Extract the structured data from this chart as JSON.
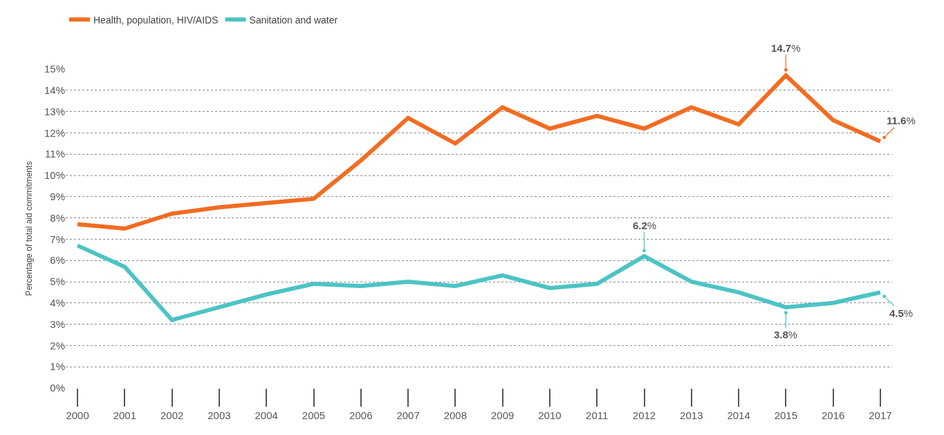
{
  "chart_data": {
    "type": "line",
    "ylabel": "Percentage of total aid commitments",
    "categories": [
      "2000",
      "2001",
      "2002",
      "2003",
      "2004",
      "2005",
      "2006",
      "2007",
      "2008",
      "2009",
      "2010",
      "2011",
      "2012",
      "2013",
      "2014",
      "2015",
      "2016",
      "2017"
    ],
    "series": [
      {
        "name": "Health, population, HIV/AIDS",
        "color": "#f26c22",
        "values": [
          7.7,
          7.5,
          8.2,
          8.5,
          8.7,
          8.9,
          10.7,
          12.7,
          11.5,
          13.2,
          12.2,
          12.8,
          12.2,
          13.2,
          12.4,
          14.7,
          12.6,
          11.6
        ]
      },
      {
        "name": "Sanitation and water",
        "color": "#4dc3c5",
        "values": [
          6.7,
          5.7,
          3.2,
          3.8,
          4.4,
          4.9,
          4.8,
          5.0,
          4.8,
          5.3,
          4.7,
          4.9,
          6.2,
          5.0,
          4.5,
          3.8,
          4.0,
          4.5
        ]
      }
    ],
    "ylim": [
      0,
      15
    ],
    "yticks": [
      {
        "value": 0,
        "label": "0%"
      },
      {
        "value": 1,
        "label": "1%"
      },
      {
        "value": 2,
        "label": "2%"
      },
      {
        "value": 3,
        "label": "3%"
      },
      {
        "value": 4,
        "label": "4%"
      },
      {
        "value": 5,
        "label": "5%"
      },
      {
        "value": 6,
        "label": "6%"
      },
      {
        "value": 7,
        "label": "7%"
      },
      {
        "value": 8,
        "label": "8%"
      },
      {
        "value": 9,
        "label": "9%"
      },
      {
        "value": 10,
        "label": "10%"
      },
      {
        "value": 11,
        "label": "11%"
      },
      {
        "value": 12,
        "label": "12%"
      },
      {
        "value": 13,
        "label": "13%"
      },
      {
        "value": 14,
        "label": "14%"
      },
      {
        "value": 15,
        "label": "15%"
      }
    ],
    "annotations": [
      {
        "text": "14.7%",
        "x": "2015",
        "y": 14.7
      },
      {
        "text": "11.6%",
        "x": "2017",
        "y": 11.6
      },
      {
        "text": "6.2%",
        "x": "2012",
        "y": 6.2
      },
      {
        "text": "3.8%",
        "x": "2015",
        "y": 3.8
      },
      {
        "text": "4.5%",
        "x": "2017",
        "y": 4.5
      }
    ],
    "grid": "y",
    "legend": "top left",
    "line_style": "solid"
  }
}
